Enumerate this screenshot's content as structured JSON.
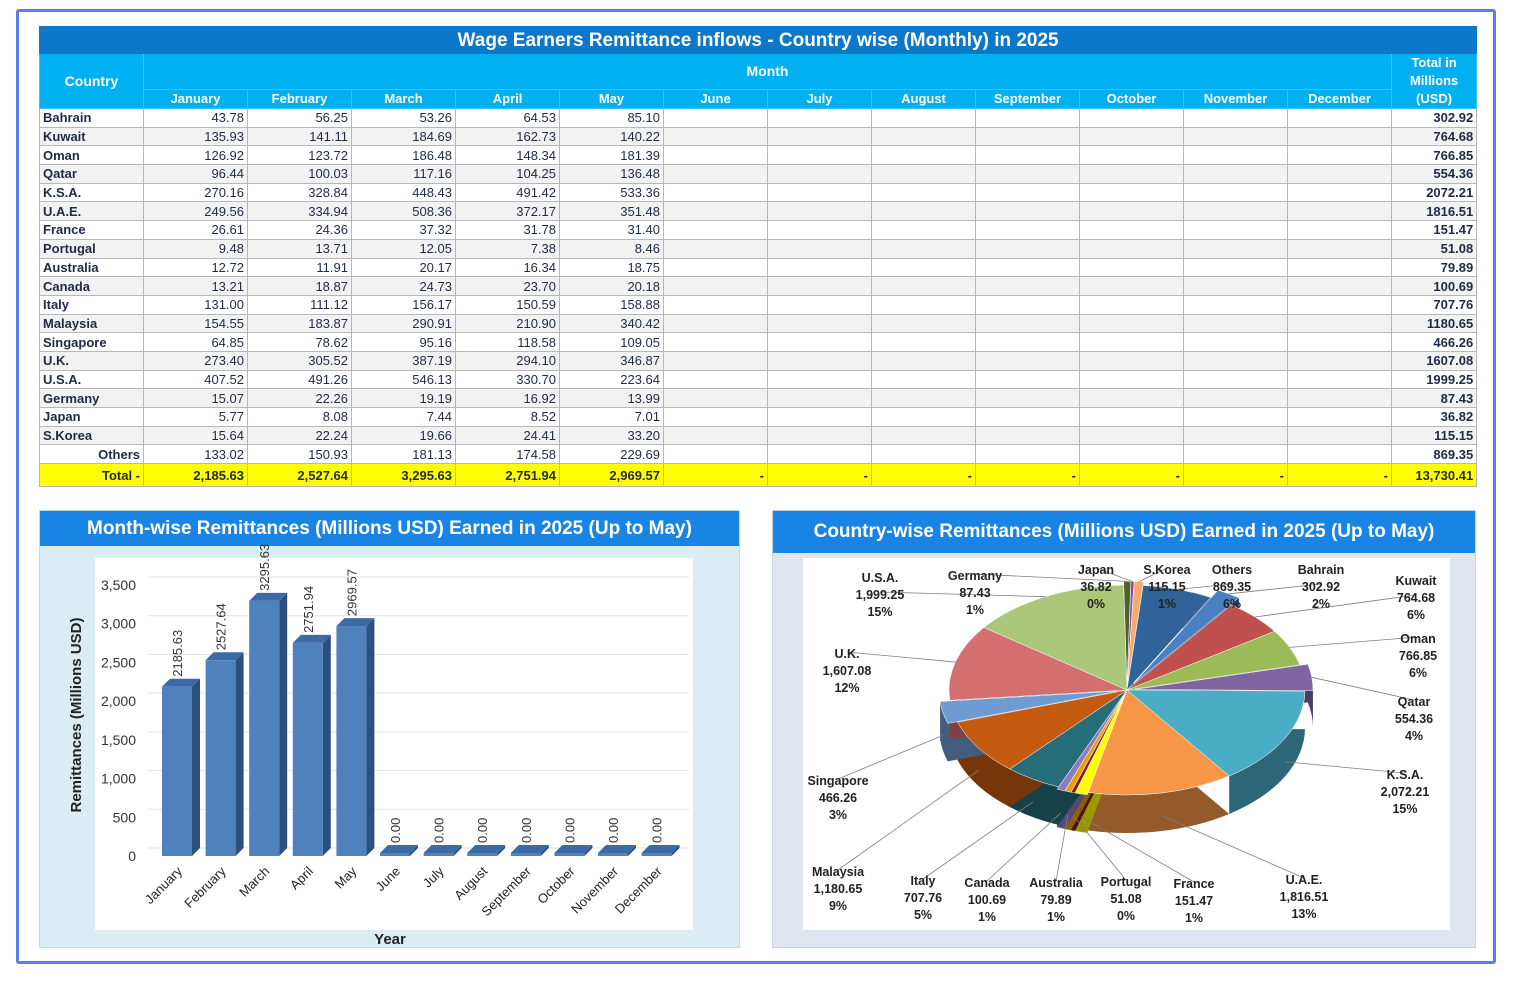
{
  "table": {
    "title": "Wage Earners Remittance inflows - Country wise (Monthly) in 2025",
    "country_header": "Country",
    "month_header": "Month",
    "total_header": "Total in Millions (USD)",
    "months": [
      "January",
      "February",
      "March",
      "April",
      "May",
      "June",
      "July",
      "August",
      "September",
      "October",
      "November",
      "December"
    ],
    "rows": [
      {
        "country": "Bahrain",
        "values": [
          "43.78",
          "56.25",
          "53.26",
          "64.53",
          "85.10"
        ],
        "total": "302.92"
      },
      {
        "country": "Kuwait",
        "values": [
          "135.93",
          "141.11",
          "184.69",
          "162.73",
          "140.22"
        ],
        "total": "764.68"
      },
      {
        "country": "Oman",
        "values": [
          "126.92",
          "123.72",
          "186.48",
          "148.34",
          "181.39"
        ],
        "total": "766.85"
      },
      {
        "country": "Qatar",
        "values": [
          "96.44",
          "100.03",
          "117.16",
          "104.25",
          "136.48"
        ],
        "total": "554.36"
      },
      {
        "country": "K.S.A.",
        "values": [
          "270.16",
          "328.84",
          "448.43",
          "491.42",
          "533.36"
        ],
        "total": "2072.21"
      },
      {
        "country": "U.A.E.",
        "values": [
          "249.56",
          "334.94",
          "508.36",
          "372.17",
          "351.48"
        ],
        "total": "1816.51"
      },
      {
        "country": "France",
        "values": [
          "26.61",
          "24.36",
          "37.32",
          "31.78",
          "31.40"
        ],
        "total": "151.47"
      },
      {
        "country": "Portugal",
        "values": [
          "9.48",
          "13.71",
          "12.05",
          "7.38",
          "8.46"
        ],
        "total": "51.08"
      },
      {
        "country": "Australia",
        "values": [
          "12.72",
          "11.91",
          "20.17",
          "16.34",
          "18.75"
        ],
        "total": "79.89"
      },
      {
        "country": "Canada",
        "values": [
          "13.21",
          "18.87",
          "24.73",
          "23.70",
          "20.18"
        ],
        "total": "100.69"
      },
      {
        "country": "Italy",
        "values": [
          "131.00",
          "111.12",
          "156.17",
          "150.59",
          "158.88"
        ],
        "total": "707.76"
      },
      {
        "country": "Malaysia",
        "values": [
          "154.55",
          "183.87",
          "290.91",
          "210.90",
          "340.42"
        ],
        "total": "1180.65"
      },
      {
        "country": "Singapore",
        "values": [
          "64.85",
          "78.62",
          "95.16",
          "118.58",
          "109.05"
        ],
        "total": "466.26"
      },
      {
        "country": "U.K.",
        "values": [
          "273.40",
          "305.52",
          "387.19",
          "294.10",
          "346.87"
        ],
        "total": "1607.08"
      },
      {
        "country": "U.S.A.",
        "values": [
          "407.52",
          "491.26",
          "546.13",
          "330.70",
          "223.64"
        ],
        "total": "1999.25"
      },
      {
        "country": "Germany",
        "values": [
          "15.07",
          "22.26",
          "19.19",
          "16.92",
          "13.99"
        ],
        "total": "87.43"
      },
      {
        "country": "Japan",
        "values": [
          "5.77",
          "8.08",
          "7.44",
          "8.52",
          "7.01"
        ],
        "total": "36.82"
      },
      {
        "country": "S.Korea",
        "values": [
          "15.64",
          "22.24",
          "19.66",
          "24.41",
          "33.20"
        ],
        "total": "115.15"
      },
      {
        "country": "Others",
        "values": [
          "133.02",
          "150.93",
          "181.13",
          "174.58",
          "229.69"
        ],
        "total": "869.35"
      }
    ],
    "total_row": {
      "label": "Total -",
      "values": [
        "2,185.63",
        "2,527.64",
        "3,295.63",
        "2,751.94",
        "2,969.57",
        "-",
        "-",
        "-",
        "-",
        "-",
        "-",
        "-"
      ],
      "total": "13,730.41"
    }
  },
  "chart_data": [
    {
      "type": "bar",
      "title": "Month-wise Remittances (Millions USD) Earned in 2025 (Up to May)",
      "xlabel": "Year",
      "ylabel": "Remittances (Millions USD)",
      "categories": [
        "January",
        "February",
        "March",
        "April",
        "May",
        "June",
        "July",
        "August",
        "September",
        "October",
        "November",
        "December"
      ],
      "values": [
        2185.63,
        2527.64,
        3295.63,
        2751.94,
        2969.57,
        0,
        0,
        0,
        0,
        0,
        0,
        0
      ],
      "data_labels": [
        "2185.63",
        "2527.64",
        "3295.63",
        "2751.94",
        "2969.57",
        "0.00",
        "0.00",
        "0.00",
        "0.00",
        "0.00",
        "0.00",
        "0.00"
      ],
      "ylim": [
        0,
        3500
      ],
      "yticks": [
        "0",
        "500",
        "1,000",
        "1,500",
        "2,000",
        "2,500",
        "3,000",
        "3,500"
      ],
      "grid": true,
      "bar_color": "#4f81bd",
      "style": "3d"
    },
    {
      "type": "pie",
      "title": "Country-wise Remittances (Millions USD) Earned in 2025 (Up to May)",
      "style": "3d exploded",
      "slices": [
        {
          "name": "Bahrain",
          "value": 302.92,
          "label": "302.92",
          "pct": "2%",
          "color": "#4a7fc1"
        },
        {
          "name": "Kuwait",
          "value": 764.68,
          "label": "764.68",
          "pct": "6%",
          "color": "#c0504d"
        },
        {
          "name": "Oman",
          "value": 766.85,
          "label": "766.85",
          "pct": "6%",
          "color": "#9bbb59"
        },
        {
          "name": "Qatar",
          "value": 554.36,
          "label": "554.36",
          "pct": "4%",
          "color": "#8064a2"
        },
        {
          "name": "K.S.A.",
          "value": 2072.21,
          "label": "2,072.21",
          "pct": "15%",
          "color": "#4bacc6"
        },
        {
          "name": "U.A.E.",
          "value": 1816.51,
          "label": "1,816.51",
          "pct": "13%",
          "color": "#f79646"
        },
        {
          "name": "France",
          "value": 151.47,
          "label": "151.47",
          "pct": "1%",
          "color": "#ffff00"
        },
        {
          "name": "Portugal",
          "value": 51.08,
          "label": "51.08",
          "pct": "0%",
          "color": "#8b1a1a"
        },
        {
          "name": "Australia",
          "value": 79.89,
          "label": "79.89",
          "pct": "1%",
          "color": "#e6a100"
        },
        {
          "name": "Canada",
          "value": 100.69,
          "label": "100.69",
          "pct": "1%",
          "color": "#8e7cc3"
        },
        {
          "name": "Italy",
          "value": 707.76,
          "label": "707.76",
          "pct": "5%",
          "color": "#266d7a"
        },
        {
          "name": "Malaysia",
          "value": 1180.65,
          "label": "1,180.65",
          "pct": "9%",
          "color": "#c55a11"
        },
        {
          "name": "Singapore",
          "value": 466.26,
          "label": "466.26",
          "pct": "3%",
          "color": "#6e9bd1"
        },
        {
          "name": "U.K.",
          "value": 1607.08,
          "label": "1,607.08",
          "pct": "12%",
          "color": "#d46f6f"
        },
        {
          "name": "U.S.A.",
          "value": 1999.25,
          "label": "1,999.25",
          "pct": "15%",
          "color": "#aac77a"
        },
        {
          "name": "Germany",
          "value": 87.43,
          "label": "87.43",
          "pct": "1%",
          "color": "#4f6228"
        },
        {
          "name": "Japan",
          "value": 36.82,
          "label": "36.82",
          "pct": "0%",
          "color": "#7a4fa0"
        },
        {
          "name": "S.Korea",
          "value": 115.15,
          "label": "115.15",
          "pct": "1%",
          "color": "#f9a870"
        },
        {
          "name": "Others",
          "value": 869.35,
          "label": "869.35",
          "pct": "6%",
          "color": "#2f6399"
        }
      ]
    }
  ]
}
